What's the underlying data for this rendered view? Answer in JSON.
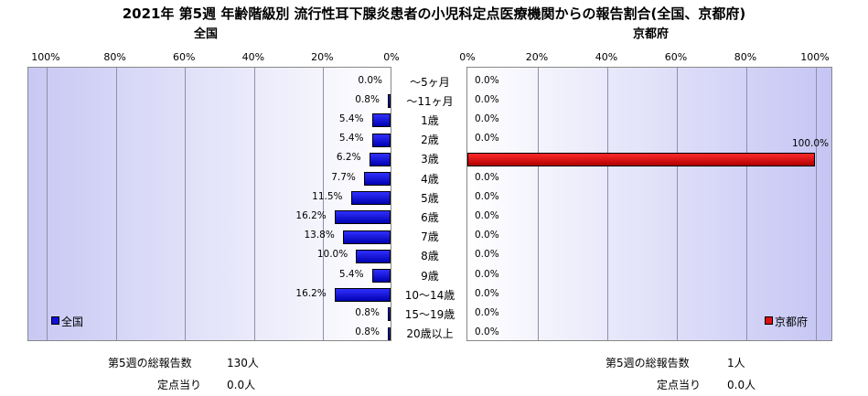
{
  "title": "2021年 第5週 年齢階級別 流行性耳下腺炎患者の小児科定点医療機関からの報告割合(全国、京都府)",
  "chart_data": [
    {
      "type": "bar",
      "orientation": "horizontal",
      "title": "全国",
      "direction": "right-to-left",
      "xlim": [
        0,
        100
      ],
      "tick_labels": [
        "100%",
        "80%",
        "60%",
        "40%",
        "20%",
        "0%"
      ],
      "categories": [
        "～5ヶ月",
        "～11ヶ月",
        "1歳",
        "2歳",
        "3歳",
        "4歳",
        "5歳",
        "6歳",
        "7歳",
        "8歳",
        "9歳",
        "10～14歳",
        "15～19歳",
        "20歳以上"
      ],
      "series": [
        {
          "name": "全国",
          "color": "#1010dd",
          "values": [
            0.0,
            0.8,
            5.4,
            5.4,
            6.2,
            7.7,
            11.5,
            16.2,
            13.8,
            10.0,
            5.4,
            16.2,
            0.8,
            0.8
          ],
          "labels": [
            "0.0%",
            "0.8%",
            "5.4%",
            "5.4%",
            "6.2%",
            "7.7%",
            "11.5%",
            "16.2%",
            "13.8%",
            "10.0%",
            "5.4%",
            "16.2%",
            "0.8%",
            "0.8%"
          ]
        }
      ],
      "legend": "bottom-left",
      "grid": true
    },
    {
      "type": "bar",
      "orientation": "horizontal",
      "title": "京都府",
      "direction": "left-to-right",
      "xlim": [
        0,
        100
      ],
      "tick_labels": [
        "0%",
        "20%",
        "40%",
        "60%",
        "80%",
        "100%"
      ],
      "categories": [
        "～5ヶ月",
        "～11ヶ月",
        "1歳",
        "2歳",
        "3歳",
        "4歳",
        "5歳",
        "6歳",
        "7歳",
        "8歳",
        "9歳",
        "10～14歳",
        "15～19歳",
        "20歳以上"
      ],
      "series": [
        {
          "name": "京都府",
          "color": "#dd1010",
          "values": [
            0.0,
            0.0,
            0.0,
            0.0,
            100.0,
            0.0,
            0.0,
            0.0,
            0.0,
            0.0,
            0.0,
            0.0,
            0.0,
            0.0
          ],
          "labels": [
            "0.0%",
            "0.0%",
            "0.0%",
            "0.0%",
            "100.0%",
            "0.0%",
            "0.0%",
            "0.0%",
            "0.0%",
            "0.0%",
            "0.0%",
            "0.0%",
            "0.0%",
            "0.0%"
          ]
        }
      ],
      "legend": "bottom-right",
      "grid": true
    }
  ],
  "footer": {
    "left": {
      "total_label": "第5週の総報告数",
      "total_value": "130人",
      "per_label": "定点当り",
      "per_value": "0.0人"
    },
    "right": {
      "total_label": "第5週の総報告数",
      "total_value": "1人",
      "per_label": "定点当り",
      "per_value": "0.0人"
    }
  }
}
